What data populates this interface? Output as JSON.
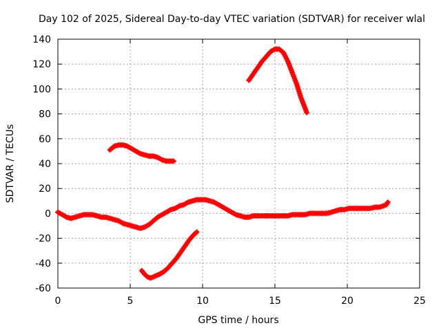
{
  "chart_data": {
    "type": "scatter",
    "title": "Day 102 of 2025, Sidereal Day-to-day VTEC variation (SDTVAR) for receiver wlal",
    "xlabel": "GPS time / hours",
    "ylabel": "SDTVAR / TECUs",
    "xlim": [
      0,
      25
    ],
    "ylim": [
      -60,
      140
    ],
    "xticks": [
      0,
      5,
      10,
      15,
      20,
      25
    ],
    "yticks": [
      -60,
      -40,
      -20,
      0,
      20,
      40,
      60,
      80,
      100,
      120,
      140
    ],
    "grid": true,
    "marker": "+",
    "color": "#ff0000",
    "series": [
      {
        "name": "main-track",
        "x": [
          0.0,
          0.3,
          0.6,
          0.9,
          1.2,
          1.5,
          1.8,
          2.1,
          2.4,
          2.7,
          3.0,
          3.3,
          3.6,
          3.9,
          4.2,
          4.5,
          4.8,
          5.1,
          5.4,
          5.7,
          6.0,
          6.3,
          6.6,
          6.9,
          7.2,
          7.5,
          7.8,
          8.1,
          8.4,
          8.7,
          9.0,
          9.3,
          9.6,
          9.9,
          10.2,
          10.5,
          10.8,
          11.1,
          11.4,
          11.7,
          12.0,
          12.3,
          12.6,
          12.9,
          13.2,
          13.5,
          13.8,
          14.1,
          14.4,
          14.7,
          15.0,
          15.3,
          15.6,
          15.9,
          16.2,
          16.5,
          16.8,
          17.1,
          17.4,
          17.7,
          18.0,
          18.3,
          18.6,
          18.9,
          19.2,
          19.5,
          19.8,
          20.1,
          20.4,
          20.7,
          21.0,
          21.3,
          21.6,
          21.9,
          22.2,
          22.5,
          22.7,
          22.8
        ],
        "y": [
          1,
          -1,
          -3,
          -4,
          -3,
          -2,
          -1,
          -1,
          -1,
          -2,
          -3,
          -3,
          -4,
          -5,
          -6,
          -8,
          -9,
          -10,
          -11,
          -12,
          -11,
          -9,
          -6,
          -3,
          -1,
          1,
          3,
          4,
          6,
          7,
          9,
          10,
          11,
          11,
          11,
          10,
          9,
          7,
          5,
          3,
          1,
          -1,
          -2,
          -3,
          -3,
          -2,
          -2,
          -2,
          -2,
          -2,
          -2,
          -2,
          -2,
          -2,
          -1,
          -1,
          -1,
          -1,
          0,
          0,
          0,
          0,
          0,
          1,
          2,
          3,
          3,
          4,
          4,
          4,
          4,
          4,
          4,
          5,
          5,
          6,
          7,
          9
        ]
      },
      {
        "name": "upper-left-arc",
        "x": [
          3.6,
          3.9,
          4.2,
          4.5,
          4.8,
          5.1,
          5.4,
          5.7,
          6.0,
          6.3,
          6.6,
          6.9,
          7.2,
          7.5,
          7.8,
          8.0
        ],
        "y": [
          51,
          54,
          55,
          55,
          54,
          52,
          50,
          48,
          47,
          46,
          46,
          45,
          43,
          42,
          42,
          42
        ]
      },
      {
        "name": "lower-arc",
        "x": [
          5.8,
          6.0,
          6.2,
          6.4,
          6.6,
          6.8,
          7.0,
          7.3,
          7.6,
          7.9,
          8.2,
          8.5,
          8.8,
          9.1,
          9.4,
          9.6
        ],
        "y": [
          -46,
          -49,
          -51,
          -52,
          -51,
          -50,
          -49,
          -47,
          -44,
          -40,
          -36,
          -31,
          -26,
          -21,
          -17,
          -15
        ]
      },
      {
        "name": "upper-right-arc",
        "x": [
          13.2,
          13.5,
          13.8,
          14.1,
          14.4,
          14.7,
          15.0,
          15.3,
          15.6,
          15.9,
          16.2,
          16.5,
          16.8,
          17.1,
          17.2
        ],
        "y": [
          107,
          112,
          117,
          122,
          126,
          130,
          132,
          132,
          129,
          122,
          113,
          104,
          93,
          84,
          81
        ]
      }
    ]
  }
}
